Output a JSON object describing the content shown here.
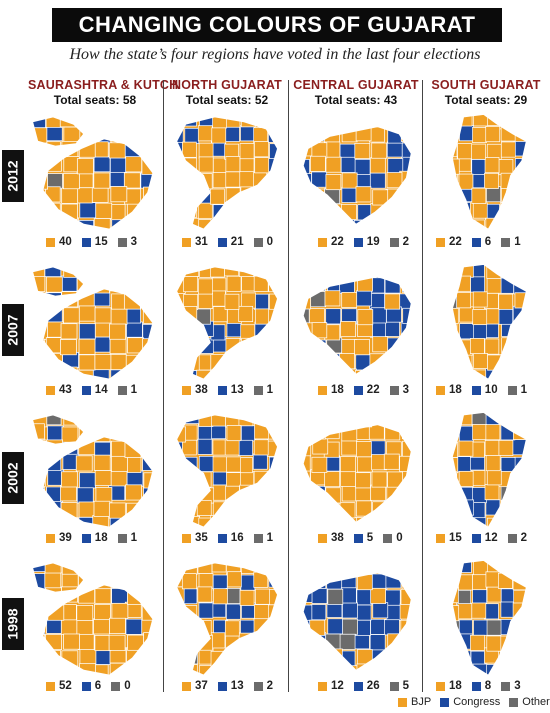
{
  "title": "CHANGING COLOURS OF GUJARAT",
  "subtitle": "How the state’s four regions have voted in the last four elections",
  "colors": {
    "bjp": "#f0a024",
    "congress": "#1d4aa0",
    "others": "#6b6b6b",
    "border": "#ffffff"
  },
  "regions": [
    {
      "name": "SAURASHTRA & KUTCH",
      "seats_label": "Total seats: 58"
    },
    {
      "name": "NORTH GUJARAT",
      "seats_label": "Total seats: 52"
    },
    {
      "name": "CENTRAL GUJARAT",
      "seats_label": "Total seats: 43"
    },
    {
      "name": "SOUTH GUJARAT",
      "seats_label": "Total seats: 29"
    }
  ],
  "years": [
    "2012",
    "2007",
    "2002",
    "1998"
  ],
  "results": [
    [
      {
        "bjp": "40",
        "congress": "15",
        "others": "3"
      },
      {
        "bjp": "31",
        "congress": "21",
        "others": "0"
      },
      {
        "bjp": "22",
        "congress": "19",
        "others": "2"
      },
      {
        "bjp": "22",
        "congress": "6",
        "others": "1"
      }
    ],
    [
      {
        "bjp": "43",
        "congress": "14",
        "others": "1"
      },
      {
        "bjp": "38",
        "congress": "13",
        "others": "1"
      },
      {
        "bjp": "18",
        "congress": "22",
        "others": "3"
      },
      {
        "bjp": "18",
        "congress": "10",
        "others": "1"
      }
    ],
    [
      {
        "bjp": "39",
        "congress": "18",
        "others": "1"
      },
      {
        "bjp": "35",
        "congress": "16",
        "others": "1"
      },
      {
        "bjp": "38",
        "congress": "5",
        "others": "0"
      },
      {
        "bjp": "15",
        "congress": "12",
        "others": "2"
      }
    ],
    [
      {
        "bjp": "52",
        "congress": "6",
        "others": "0"
      },
      {
        "bjp": "37",
        "congress": "13",
        "others": "2"
      },
      {
        "bjp": "12",
        "congress": "26",
        "others": "5"
      },
      {
        "bjp": "18",
        "congress": "8",
        "others": "3"
      }
    ]
  ],
  "legend": {
    "bjp": "BJP",
    "congress": "Congress",
    "others": "Others"
  }
}
